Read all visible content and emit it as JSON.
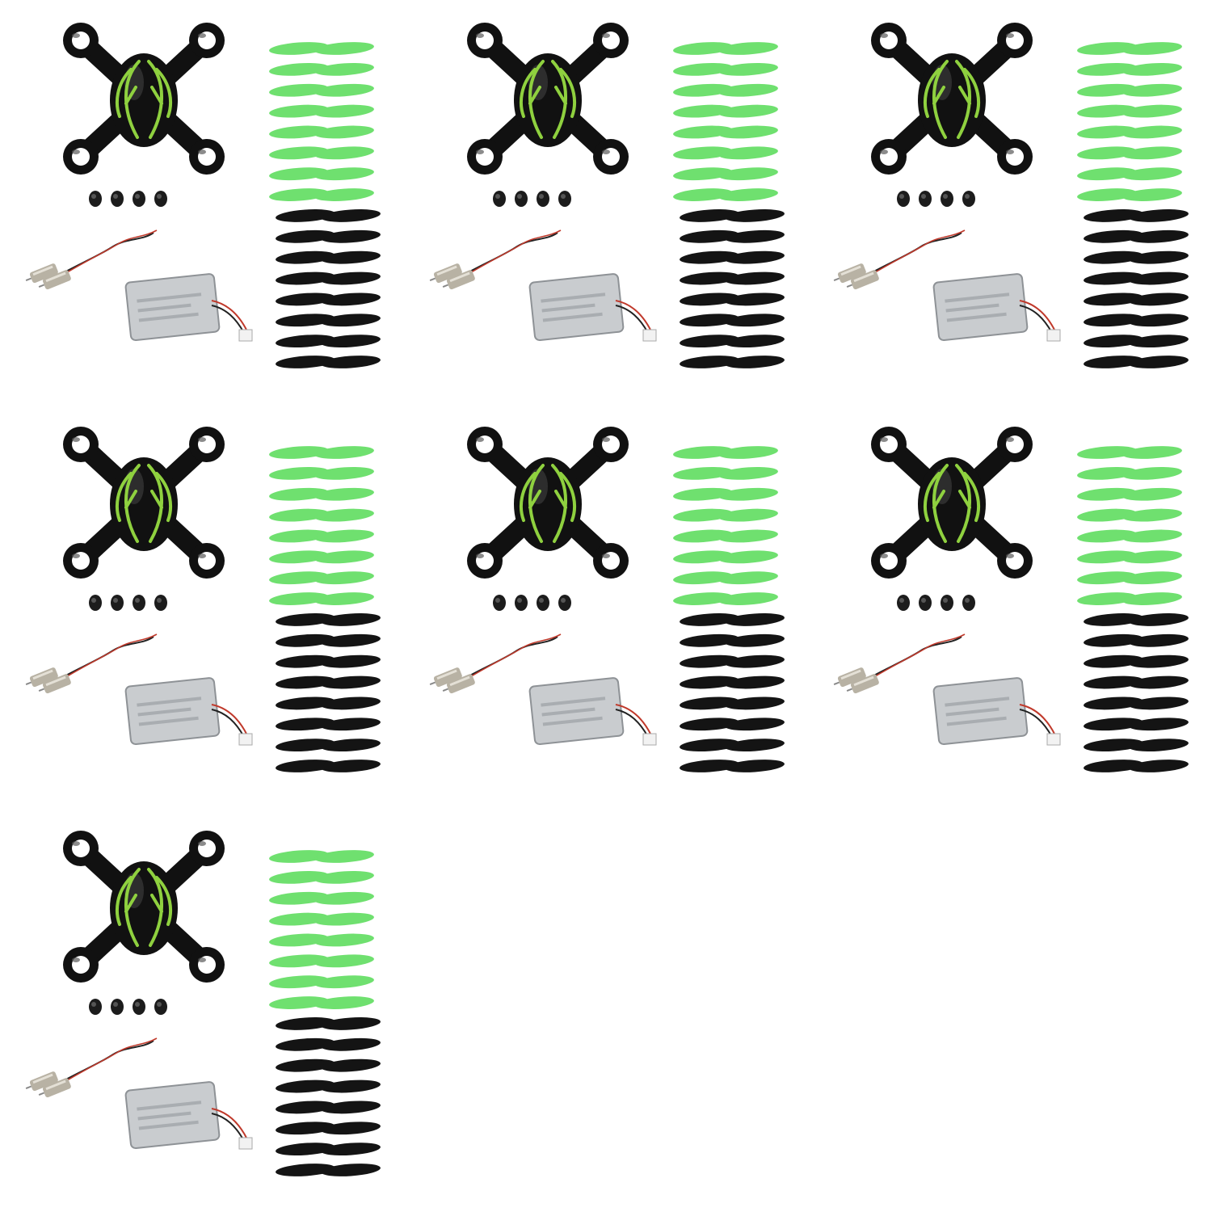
{
  "image": {
    "subject": "quadcopter-spare-parts-kits",
    "kit_count": 7,
    "kits_per_row": 3,
    "parts_per_kit": {
      "canopy": 1,
      "rubber_feet": 4,
      "motors": 2,
      "battery": 1,
      "green_propellers": 8,
      "black_propellers": 8
    },
    "colors": {
      "background": "#ffffff",
      "canopy_body": "#111111",
      "canopy_accent": "#8fd13f",
      "propeller_green": "#6fe06f",
      "propeller_black": "#141414",
      "battery_silver": "#c9cccf",
      "motor_metal": "#b8b2a4",
      "wire_red": "#c0392b",
      "connector_white": "#f2f2f2"
    }
  }
}
